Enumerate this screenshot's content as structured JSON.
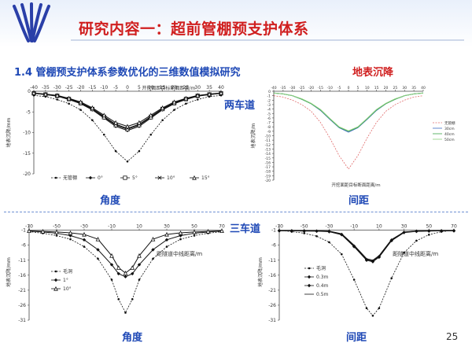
{
  "slide": {
    "title": "研究内容一：超前管棚预支护体系",
    "subtitle": "1.4 管棚预支护体系参数优化的三维数值模拟研究",
    "topic": "地表沉降",
    "page_number": "25"
  },
  "labels": {
    "two_lane": "两车道",
    "three_lane": "三车道",
    "angle_top": "角度",
    "spacing_top": "间距",
    "angle_bottom": "角度",
    "spacing_bottom": "间距"
  },
  "colors": {
    "title_red": "#d01f1f",
    "accent_blue": "#1f49b6",
    "logo_blue": "#2a3fa8"
  },
  "chart_data": [
    {
      "type": "line",
      "id": "two-lane-angle",
      "xlabel": "开挖面距目标断面距离/m",
      "ylabel": "地表沉降/mm",
      "xlim": [
        -40,
        40
      ],
      "ylim": [
        -20,
        0
      ],
      "xticks": [
        -40,
        -35,
        -30,
        -25,
        -20,
        -15,
        -10,
        -5,
        0,
        5,
        10,
        15,
        20,
        25,
        30,
        35,
        40
      ],
      "yticks": [
        0,
        -5,
        -10,
        -15,
        -20
      ],
      "legend": "bottom",
      "x": [
        -40,
        -35,
        -30,
        -25,
        -20,
        -15,
        -10,
        -5,
        0,
        5,
        10,
        15,
        20,
        25,
        30,
        35,
        40
      ],
      "series": [
        {
          "name": "无管棚",
          "marker": "dot",
          "dash": true,
          "values": [
            -1,
            -1.3,
            -2,
            -3,
            -4.5,
            -7,
            -10.5,
            -14.5,
            -17,
            -14.5,
            -10.5,
            -7,
            -4.5,
            -3,
            -2,
            -1.3,
            -1
          ]
        },
        {
          "name": "0°",
          "marker": "diamond",
          "dash": false,
          "values": [
            -0.5,
            -0.8,
            -1.2,
            -2,
            -3,
            -4.5,
            -6.5,
            -8.5,
            -9.5,
            -8.5,
            -6.5,
            -4.5,
            -3,
            -2,
            -1.2,
            -0.8,
            -0.5
          ]
        },
        {
          "name": "5°",
          "marker": "square",
          "dash": false,
          "values": [
            -0.5,
            -0.8,
            -1.1,
            -1.9,
            -2.9,
            -4.3,
            -6.3,
            -8.2,
            -9.2,
            -8.2,
            -6.3,
            -4.3,
            -2.9,
            -1.9,
            -1.1,
            -0.8,
            -0.5
          ]
        },
        {
          "name": "10°",
          "marker": "cross",
          "dash": false,
          "values": [
            -0.5,
            -0.7,
            -1.1,
            -1.8,
            -2.8,
            -4.2,
            -6.1,
            -8,
            -9,
            -8,
            -6.1,
            -4.2,
            -2.8,
            -1.8,
            -1.1,
            -0.7,
            -0.5
          ]
        },
        {
          "name": "15°",
          "marker": "triangle",
          "dash": false,
          "values": [
            -0.4,
            -0.7,
            -1,
            -1.7,
            -2.6,
            -4,
            -5.8,
            -7.6,
            -8.5,
            -7.6,
            -5.8,
            -4,
            -2.6,
            -1.7,
            -1,
            -0.7,
            -0.4
          ]
        }
      ]
    },
    {
      "type": "line",
      "id": "two-lane-spacing",
      "xlabel": "开挖面距目标断面距离/m",
      "ylabel": "地表沉降/m",
      "xlim": [
        -40,
        40
      ],
      "ylim": [
        -20,
        0
      ],
      "xticks": [
        -40,
        -35,
        -30,
        -25,
        -20,
        -15,
        -10,
        -5,
        0,
        5,
        10,
        15,
        20,
        25,
        30,
        35,
        40
      ],
      "yticks": [
        0,
        -1,
        -2,
        -3,
        -4,
        -5,
        -6,
        -7,
        -8,
        -9,
        -10,
        -11,
        -12,
        -13,
        -14,
        -15,
        -16,
        -17,
        -18,
        -19,
        -20
      ],
      "legend": "right",
      "x": [
        -40,
        -35,
        -30,
        -25,
        -20,
        -15,
        -10,
        -5,
        0,
        5,
        10,
        15,
        20,
        25,
        30,
        35,
        40
      ],
      "series": [
        {
          "name": "无管棚",
          "color": "#e06b6b",
          "dash": true,
          "values": [
            -1,
            -1.3,
            -2,
            -3,
            -4.5,
            -7,
            -10.5,
            -14.5,
            -17.5,
            -14.5,
            -10.5,
            -7,
            -4.5,
            -3,
            -2,
            -1.3,
            -1
          ]
        },
        {
          "name": "30cm",
          "color": "#3d6bc4",
          "dash": false,
          "values": [
            -0.4,
            -0.6,
            -1,
            -1.8,
            -2.8,
            -4.3,
            -6.3,
            -8.2,
            -9.2,
            -8.2,
            -6.3,
            -4.3,
            -2.8,
            -1.8,
            -1,
            -0.6,
            -0.4
          ]
        },
        {
          "name": "40cm",
          "color": "#3aa64a",
          "dash": false,
          "values": [
            -0.4,
            -0.6,
            -1,
            -1.8,
            -2.8,
            -4.2,
            -6.2,
            -8.1,
            -9,
            -8.1,
            -6.2,
            -4.2,
            -2.8,
            -1.8,
            -1,
            -0.6,
            -0.4
          ]
        },
        {
          "name": "50cm",
          "color": "#8ccf7e",
          "dash": false,
          "values": [
            -0.4,
            -0.6,
            -1,
            -1.7,
            -2.7,
            -4.1,
            -6.1,
            -8,
            -8.9,
            -8,
            -6.1,
            -4.1,
            -2.7,
            -1.7,
            -1,
            -0.6,
            -0.4
          ]
        }
      ]
    },
    {
      "type": "line",
      "id": "three-lane-angle",
      "xlabel": "距隧道中线距离/m",
      "ylabel": "地表沉降/mm",
      "xlim": [
        -70,
        70
      ],
      "ylim": [
        -31,
        1
      ],
      "xticks": [
        -70,
        -50,
        -30,
        -10,
        10,
        30,
        50,
        70
      ],
      "yticks": [
        -1,
        -6,
        -11,
        -16,
        -21,
        -26,
        -31
      ],
      "legend": "left",
      "x": [
        -70,
        -60,
        -50,
        -40,
        -30,
        -20,
        -10,
        -5,
        0,
        5,
        10,
        20,
        30,
        40,
        50,
        60,
        70
      ],
      "series": [
        {
          "name": "毛洞",
          "marker": "dot",
          "dash": true,
          "values": [
            -1.5,
            -2,
            -2.8,
            -4,
            -6.5,
            -10.5,
            -17.5,
            -24,
            -28.5,
            -24,
            -17.5,
            -10.5,
            -6.5,
            -4,
            -2.8,
            -2,
            -1.5
          ]
        },
        {
          "name": "1°",
          "marker": "diamond",
          "dash": false,
          "values": [
            -1.3,
            -1.6,
            -2,
            -2.8,
            -4.2,
            -7.5,
            -12.5,
            -15.5,
            -16.5,
            -15.5,
            -12.5,
            -7.5,
            -4.2,
            -2.8,
            -2,
            -1.6,
            -1.3
          ]
        },
        {
          "name": "10°",
          "marker": "triangle",
          "dash": false,
          "values": [
            -1.2,
            -1.4,
            -1.6,
            -1.9,
            -2.4,
            -4,
            -9.5,
            -13.5,
            -15.3,
            -13.5,
            -9.5,
            -4,
            -2.4,
            -1.9,
            -1.6,
            -1.4,
            -1.2
          ]
        }
      ]
    },
    {
      "type": "line",
      "id": "three-lane-spacing",
      "xlabel": "距隧道中线距离/m",
      "ylabel": "地表沉降/mm",
      "xlim": [
        -70,
        70
      ],
      "ylim": [
        -31,
        1
      ],
      "xticks": [
        -70,
        -50,
        -30,
        -10,
        10,
        30,
        50,
        70
      ],
      "yticks": [
        -1,
        -6,
        -11,
        -16,
        -21,
        -26,
        -31
      ],
      "legend": "left",
      "x": [
        -70,
        -60,
        -50,
        -40,
        -30,
        -20,
        -10,
        0,
        5,
        10,
        20,
        30,
        40,
        50,
        60,
        70
      ],
      "series": [
        {
          "name": "毛洞",
          "marker": "dot",
          "dash": true,
          "values": [
            -1,
            -1.5,
            -2,
            -3,
            -5,
            -9,
            -17.5,
            -27,
            -29.5,
            -27,
            -17,
            -8.5,
            -4.5,
            -2.5,
            -1.5,
            -1
          ]
        },
        {
          "name": "0.3m",
          "marker": "diamond",
          "dash": false,
          "values": [
            -1.2,
            -1.2,
            -1.3,
            -1.3,
            -1.5,
            -2.5,
            -6.5,
            -11,
            -11.5,
            -10,
            -4.5,
            -1.8,
            -1.4,
            -1.3,
            -1.2,
            -1.2
          ]
        },
        {
          "name": "0.4m",
          "marker": "diamond",
          "dash": false,
          "values": [
            -1.2,
            -1.2,
            -1.2,
            -1.3,
            -1.4,
            -2.4,
            -6.3,
            -10.8,
            -11.3,
            -9.8,
            -4.3,
            -1.7,
            -1.3,
            -1.2,
            -1.2,
            -1.2
          ]
        },
        {
          "name": "0.5m",
          "marker": "none",
          "dash": false,
          "values": [
            -1.1,
            -1.1,
            -1.2,
            -1.2,
            -1.3,
            -2.2,
            -6,
            -10.5,
            -11,
            -9.5,
            -4.1,
            -1.6,
            -1.3,
            -1.2,
            -1.1,
            -1.1
          ]
        }
      ]
    }
  ]
}
